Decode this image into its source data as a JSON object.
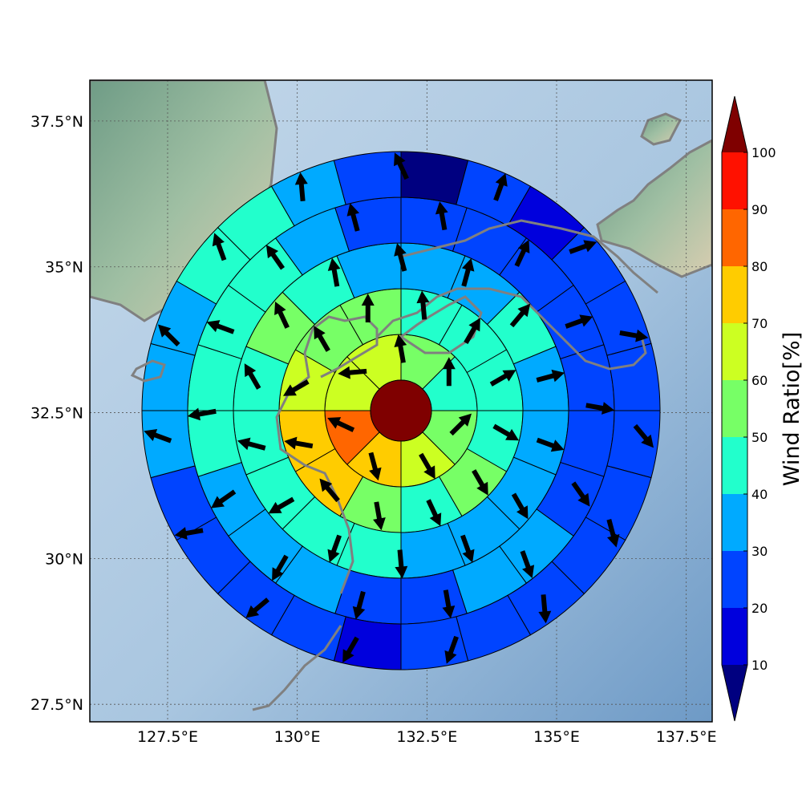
{
  "chart_data": {
    "type": "polar-sector-map",
    "lat_ticks": [
      "37.5°N",
      "35°N",
      "32.5°N",
      "30°N",
      "27.5°N"
    ],
    "lon_ticks": [
      "127.5°E",
      "130°E",
      "132.5°E",
      "135°E",
      "137.5°E"
    ],
    "lat_values": [
      37.5,
      35,
      32.5,
      30,
      27.5
    ],
    "lon_values": [
      127.5,
      130,
      132.5,
      135,
      137.5
    ],
    "xlim": [
      126.0,
      138.0
    ],
    "ylim": [
      27.2,
      38.2
    ],
    "grid": true,
    "center_value": 100,
    "rings": [
      {
        "sectors": 8,
        "values": [
          55,
          45,
          55,
          65,
          75,
          80,
          65,
          60
        ]
      },
      {
        "sectors": 12,
        "values": [
          45,
          40,
          45,
          40,
          50,
          40,
          50,
          70,
          70,
          60,
          55,
          50
        ]
      },
      {
        "sectors": 16,
        "values": [
          35,
          35,
          40,
          35,
          35,
          35,
          35,
          35,
          40,
          45,
          40,
          40,
          45,
          55,
          45,
          35
        ]
      },
      {
        "sectors": 20,
        "values": [
          25,
          25,
          25,
          25,
          25,
          25,
          25,
          35,
          35,
          25,
          25,
          35,
          35,
          35,
          40,
          40,
          45,
          45,
          35,
          25
        ]
      },
      {
        "sectors": 24,
        "values": [
          5,
          25,
          15,
          25,
          25,
          25,
          25,
          25,
          25,
          25,
          25,
          25,
          15,
          25,
          25,
          25,
          25,
          35,
          35,
          35,
          45,
          45,
          35,
          25
        ]
      }
    ],
    "arrow_angles_deg": [
      [
        -10,
        0,
        45,
        150,
        165,
        -65,
        -95
      ],
      [
        -5,
        30,
        60,
        120,
        150,
        155,
        170,
        -40,
        -80,
        -120,
        -30,
        0
      ],
      [
        -15,
        15,
        40,
        75,
        110,
        150,
        160,
        175,
        -160,
        -120,
        -75,
        -30,
        -25,
        -10
      ],
      [
        -10,
        25,
        70,
        100,
        145,
        160,
        170,
        -165,
        -150,
        -125,
        -100,
        -70,
        -35,
        -15
      ],
      [
        -25,
        20,
        70,
        100,
        140,
        165,
        175,
        -160,
        -150,
        -130,
        -100,
        -70,
        -45,
        -20,
        -5
      ]
    ],
    "colorbar": {
      "label": "Wind Ratio[%]",
      "ticks": [
        "10",
        "20",
        "30",
        "40",
        "50",
        "60",
        "70",
        "80",
        "90",
        "100"
      ],
      "min": 10,
      "max": 100,
      "colors": [
        "#0000dd",
        "#0044ff",
        "#00aaff",
        "#22ffcc",
        "#77ff66",
        "#ccff22",
        "#ffcc00",
        "#ff6600",
        "#ff1100"
      ],
      "under_color": "#000080",
      "over_color": "#7f0000"
    }
  }
}
